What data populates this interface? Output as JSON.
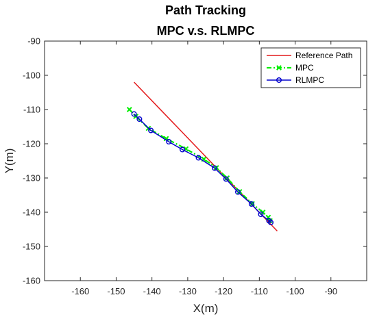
{
  "chart_data": {
    "type": "line",
    "title": "Path Tracking",
    "subtitle": "MPC v.s. RLMPC",
    "xlabel": "X(m)",
    "ylabel": "Y(m)",
    "xlim": [
      -170,
      -80
    ],
    "ylim": [
      -160,
      -90
    ],
    "xticks": [
      -160,
      -150,
      -140,
      -130,
      -120,
      -110,
      -100,
      -90
    ],
    "yticks": [
      -90,
      -100,
      -110,
      -120,
      -130,
      -140,
      -150,
      -160
    ],
    "grid": false,
    "legend_position": "top-right",
    "series": [
      {
        "name": "Reference Path",
        "color": "#e41a1c",
        "style": "solid",
        "marker": "none",
        "x": [
          -145,
          -105
        ],
        "y": [
          -102,
          -145.5
        ]
      },
      {
        "name": "MPC",
        "color": "#00ee00",
        "style": "dashdot",
        "marker": "x",
        "x": [
          -146.3,
          -144.5,
          -141,
          -136,
          -130.5,
          -125.5,
          -122,
          -119,
          -115.5,
          -112,
          -109,
          -107.5,
          -107
        ],
        "y": [
          -110,
          -112,
          -115.5,
          -118.5,
          -121.5,
          -124.5,
          -127,
          -130,
          -134,
          -137.5,
          -140,
          -141.5,
          -142.5
        ]
      },
      {
        "name": "RLMPC",
        "color": "#0000cc",
        "style": "solid",
        "marker": "o",
        "x": [
          -145,
          -143.5,
          -140.3,
          -135.3,
          -131.5,
          -127,
          -122.5,
          -119.3,
          -116,
          -112.2,
          -109.6,
          -107.3,
          -106.8
        ],
        "y": [
          -111.3,
          -112.8,
          -116.1,
          -119.4,
          -121.7,
          -124.1,
          -127.1,
          -130.3,
          -134.1,
          -137.6,
          -140.6,
          -142.5,
          -143
        ]
      }
    ]
  }
}
